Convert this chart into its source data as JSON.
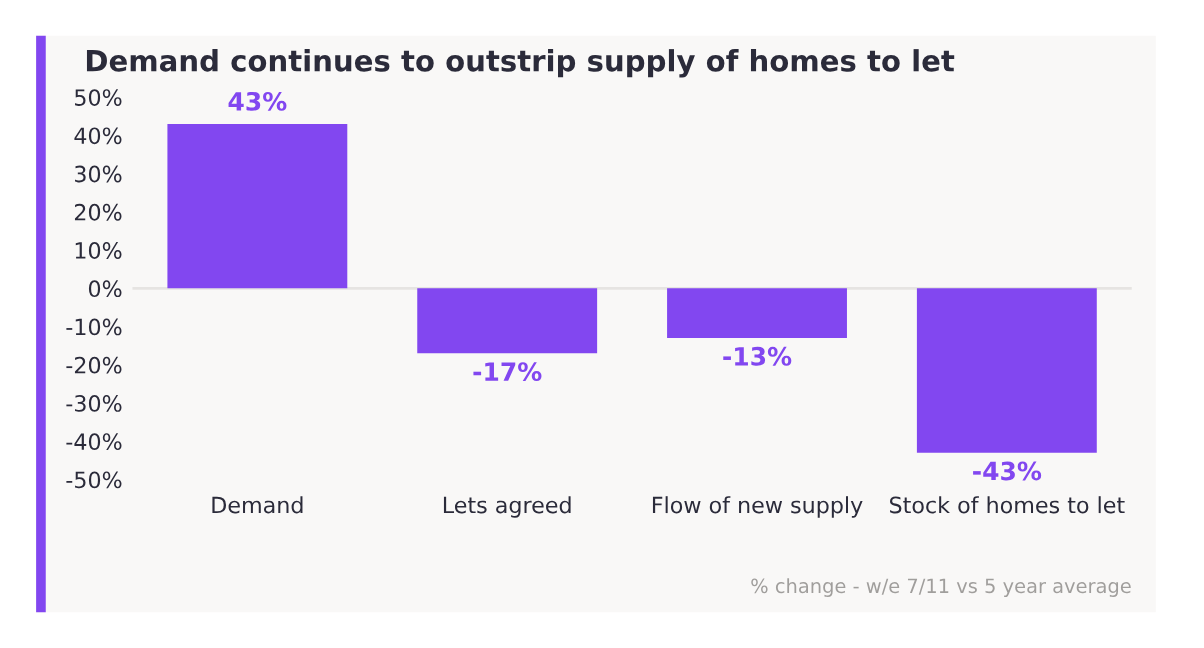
{
  "chart_data": {
    "type": "bar",
    "title": "Demand continues to outstrip supply of homes to let",
    "categories": [
      "Demand",
      "Lets agreed",
      "Flow of new supply",
      "Stock of homes to let"
    ],
    "values": [
      43,
      -17,
      -13,
      -43
    ],
    "color": "#8247f0",
    "value_labels": [
      "43%",
      "-17%",
      "-13%",
      "-43%"
    ],
    "ylim": [
      -50,
      50
    ],
    "yticks": [
      {
        "value": -50,
        "label": "-50%"
      },
      {
        "value": -40,
        "label": "-40%"
      },
      {
        "value": -30,
        "label": "-30%"
      },
      {
        "value": -20,
        "label": "-20%"
      },
      {
        "value": -10,
        "label": "-10%"
      },
      {
        "value": 0,
        "label": "0%"
      },
      {
        "value": 10,
        "label": "10%"
      },
      {
        "value": 20,
        "label": "20%"
      },
      {
        "value": 30,
        "label": "30%"
      },
      {
        "value": 40,
        "label": "40%"
      },
      {
        "value": 50,
        "label": "50%"
      }
    ],
    "grid": false,
    "legend": false,
    "ref_lines": [
      {
        "axis": "y",
        "value": 0,
        "color": "#e6e4e2"
      }
    ],
    "annotations": [
      "% change - w/e 7/11 vs 5 year average"
    ]
  }
}
